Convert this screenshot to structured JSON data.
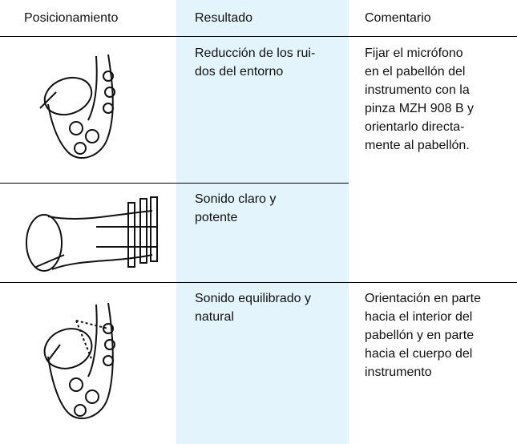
{
  "header": {
    "position": "Posicionamiento",
    "result": "Resultado",
    "comment": "Comentario"
  },
  "rows": [
    {
      "result": [
        "Reducción de los rui-",
        "dos del entorno"
      ],
      "comment": [
        "Fijar el micrófono",
        "en el pabellón del",
        "instrumento con la",
        "pinza MZH 908 B y",
        "orientarlo directa-",
        "mente al pabellón."
      ]
    },
    {
      "result": [
        "Sonido claro y",
        "potente"
      ]
    },
    {
      "result": [
        "Sonido equilibrado y",
        "natural"
      ],
      "comment": [
        "Orientación en parte",
        "hacia el interior del",
        "pabellón y en parte",
        "hacia el cuerpo del",
        "instrumento"
      ]
    }
  ]
}
